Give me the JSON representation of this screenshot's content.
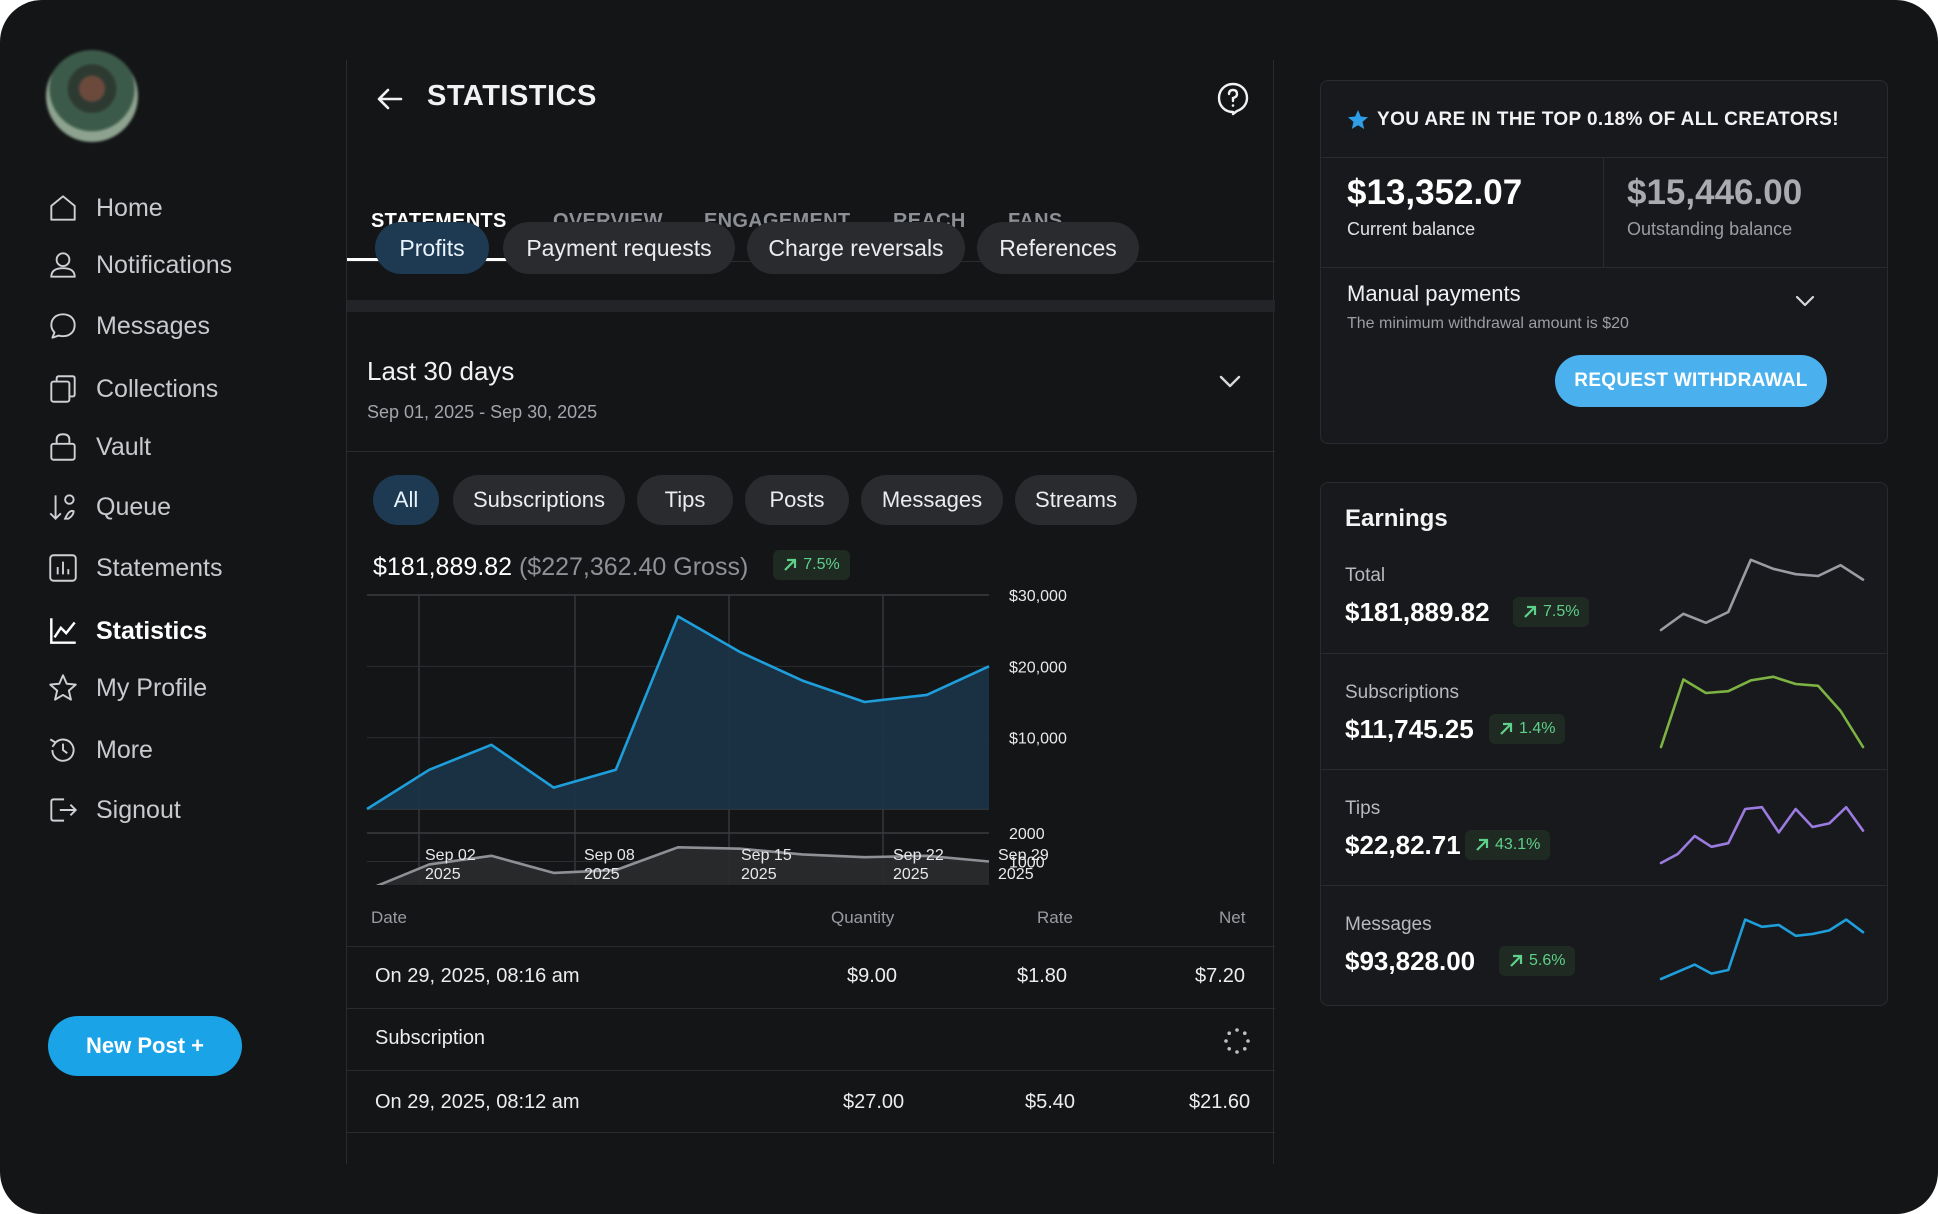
{
  "sidebar": {
    "items": [
      {
        "label": "Home",
        "icon": "home-icon"
      },
      {
        "label": "Notifications",
        "icon": "user-icon"
      },
      {
        "label": "Messages",
        "icon": "message-icon"
      },
      {
        "label": "Collections",
        "icon": "collections-icon"
      },
      {
        "label": "Vault",
        "icon": "lock-icon"
      },
      {
        "label": "Queue",
        "icon": "sort-icon"
      },
      {
        "label": "Statements",
        "icon": "bar-chart-icon"
      },
      {
        "label": "Statistics",
        "icon": "line-chart-icon",
        "active": true
      },
      {
        "label": "My Profile",
        "icon": "star-icon"
      },
      {
        "label": "More",
        "icon": "history-icon"
      },
      {
        "label": "Signout",
        "icon": "signout-icon"
      }
    ],
    "new_post_label": "New Post +"
  },
  "header": {
    "title": "STATISTICS"
  },
  "tabs": [
    "STATEMENTS",
    "OVERVIEW",
    "ENGAGEMENT",
    "REACH",
    "FANS"
  ],
  "active_tab": "STATEMENTS",
  "sub_filters": [
    "Profits",
    "Payment requests",
    "Charge reversals",
    "References"
  ],
  "active_sub_filter": "Profits",
  "period": {
    "title": "Last 30 days",
    "range": "Sep 01, 2025 - Sep 30, 2025"
  },
  "categories": [
    "All",
    "Subscriptions",
    "Tips",
    "Posts",
    "Messages",
    "Streams"
  ],
  "active_category": "All",
  "totals": {
    "net": "$181,889.82",
    "gross": "($227,362.40 Gross)",
    "change": "7.5%"
  },
  "colors": {
    "accent": "#1aa3e6",
    "earnings_line": "#1e9fdc",
    "count_line": "#8e9096",
    "positive": "#5fd08a",
    "subscriptions_spark": "#7cb342",
    "tips_spark": "#9b7be0",
    "messages_spark": "#1e9fdc",
    "total_spark": "#9a9ca3"
  },
  "chart_data": [
    {
      "type": "area",
      "x": [
        "Sep 01, 2025",
        "Sep 04, 2025",
        "Sep 07, 2025",
        "Sep 10, 2025",
        "Sep 13, 2025",
        "Sep 16, 2025",
        "Sep 19, 2025",
        "Sep 22, 2025",
        "Sep 25, 2025",
        "Sep 28, 2025",
        "Sep 30, 2025"
      ],
      "series": [
        {
          "values": [
            0,
            5500,
            9000,
            3000,
            5500,
            27000,
            22000,
            18000,
            15000,
            16000,
            20000
          ]
        }
      ],
      "ylim": [
        0,
        30000
      ],
      "y_ticks": [
        "$30,000",
        "$20,000",
        "$10,000"
      ],
      "grid": true
    },
    {
      "type": "area",
      "x": [
        "Sep 01, 2025",
        "Sep 04, 2025",
        "Sep 07, 2025",
        "Sep 10, 2025",
        "Sep 13, 2025",
        "Sep 16, 2025",
        "Sep 19, 2025",
        "Sep 22, 2025",
        "Sep 25, 2025",
        "Sep 28, 2025",
        "Sep 30, 2025"
      ],
      "series": [
        {
          "values": [
            0,
            900,
            1200,
            600,
            700,
            1500,
            1450,
            1250,
            1150,
            1200,
            1000
          ]
        }
      ],
      "ylim": [
        0,
        2000
      ],
      "y_ticks": [
        "2000",
        "1000"
      ],
      "x_ticks": [
        {
          "day": "Sep 02",
          "year": "2025"
        },
        {
          "day": "Sep 08",
          "year": "2025"
        },
        {
          "day": "Sep 15",
          "year": "2025"
        },
        {
          "day": "Sep 22",
          "year": "2025"
        },
        {
          "day": "Sep 29",
          "year": "2025"
        }
      ],
      "grid": true
    }
  ],
  "table": {
    "headers": {
      "date": "Date",
      "quantity": "Quantity",
      "rate": "Rate",
      "net": "Net"
    },
    "rows": [
      {
        "date": "On 29, 2025, 08:16 am",
        "quantity": "$9.00",
        "rate": "$1.80",
        "net": "$7.20"
      },
      {
        "type_label": "Subscription",
        "loading": true
      },
      {
        "date": "On 29, 2025, 08:12 am",
        "quantity": "$27.00",
        "rate": "$5.40",
        "net": "$21.60"
      }
    ]
  },
  "balance": {
    "banner": "YOU ARE IN THE TOP 0.18% OF ALL CREATORS!",
    "current_amount": "$13,352.07",
    "current_label": "Current balance",
    "outstanding_amount": "$15,446.00",
    "outstanding_label": "Outstanding balance",
    "manual_title": "Manual payments",
    "manual_note": "The minimum withdrawal amount is $20",
    "withdraw_label": "REQUEST WITHDRAWAL"
  },
  "earnings": {
    "title": "Earnings",
    "rows": [
      {
        "label": "Total",
        "value": "$181,889.82",
        "change": "7.5%",
        "spark": [
          10,
          28,
          18,
          30,
          88,
          78,
          72,
          70,
          82,
          66
        ],
        "color": "#9a9ca3"
      },
      {
        "label": "Subscriptions",
        "value": "$11,745.25",
        "change": "1.4%",
        "spark": [
          10,
          85,
          70,
          72,
          84,
          88,
          80,
          78,
          50,
          10
        ],
        "color": "#7cb342"
      },
      {
        "label": "Tips",
        "value": "$22,82.71",
        "change": "43.1%",
        "spark": [
          10,
          20,
          40,
          28,
          32,
          70,
          72,
          44,
          70,
          50,
          54,
          72,
          46
        ],
        "color": "#9b7be0"
      },
      {
        "label": "Messages",
        "value": "$93,828.00",
        "change": "5.6%",
        "spark": [
          10,
          18,
          26,
          16,
          20,
          76,
          68,
          70,
          58,
          60,
          64,
          76,
          62
        ],
        "color": "#1e9fdc"
      }
    ]
  }
}
